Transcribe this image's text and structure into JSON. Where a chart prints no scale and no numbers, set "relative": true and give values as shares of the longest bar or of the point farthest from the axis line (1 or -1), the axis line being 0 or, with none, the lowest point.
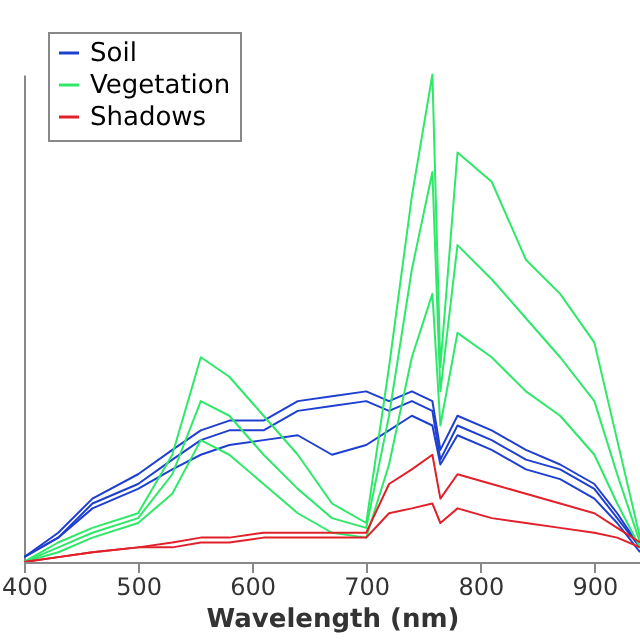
{
  "chart_data": {
    "type": "line",
    "relative": true,
    "xlabel": "Wavelength (nm)",
    "xlim": [
      400,
      940
    ],
    "xticks": [
      400,
      500,
      600,
      700,
      800,
      900
    ],
    "grid": false,
    "legend": "top left",
    "x": [
      400,
      430,
      460,
      500,
      530,
      555,
      580,
      610,
      640,
      670,
      700,
      720,
      740,
      758,
      765,
      780,
      810,
      840,
      870,
      900,
      920,
      940
    ],
    "series": [
      {
        "name": "Soil",
        "color": "#1f3fd0",
        "values": [
          0.01,
          0.06,
          0.13,
          0.18,
          0.23,
          0.27,
          0.29,
          0.29,
          0.33,
          0.34,
          0.35,
          0.33,
          0.35,
          0.33,
          0.23,
          0.3,
          0.27,
          0.23,
          0.2,
          0.16,
          0.1,
          0.03
        ]
      },
      {
        "color": "#1f3fd0",
        "values": [
          0.01,
          0.05,
          0.12,
          0.16,
          0.21,
          0.25,
          0.27,
          0.27,
          0.31,
          0.32,
          0.33,
          0.31,
          0.33,
          0.31,
          0.21,
          0.28,
          0.25,
          0.21,
          0.19,
          0.15,
          0.09,
          0.03
        ]
      },
      {
        "color": "#1f3fd0",
        "values": [
          0.01,
          0.05,
          0.11,
          0.15,
          0.19,
          0.22,
          0.24,
          0.25,
          0.26,
          0.22,
          0.24,
          0.27,
          0.3,
          0.28,
          0.2,
          0.26,
          0.23,
          0.19,
          0.17,
          0.13,
          0.08,
          0.02
        ]
      },
      {
        "name": "Vegetation",
        "color": "#2ee86a",
        "values": [
          0.0,
          0.04,
          0.07,
          0.1,
          0.22,
          0.42,
          0.38,
          0.3,
          0.22,
          0.12,
          0.08,
          0.4,
          0.75,
          1.0,
          0.4,
          0.84,
          0.78,
          0.62,
          0.55,
          0.45,
          0.25,
          0.05
        ]
      },
      {
        "color": "#2ee86a",
        "values": [
          0.0,
          0.03,
          0.06,
          0.09,
          0.18,
          0.33,
          0.3,
          0.22,
          0.15,
          0.09,
          0.07,
          0.3,
          0.6,
          0.8,
          0.35,
          0.65,
          0.58,
          0.5,
          0.42,
          0.33,
          0.18,
          0.04
        ]
      },
      {
        "color": "#2ee86a",
        "values": [
          0.0,
          0.02,
          0.05,
          0.08,
          0.14,
          0.25,
          0.22,
          0.16,
          0.1,
          0.06,
          0.05,
          0.2,
          0.42,
          0.55,
          0.28,
          0.47,
          0.42,
          0.35,
          0.3,
          0.22,
          0.12,
          0.03
        ]
      },
      {
        "name": "Shadows",
        "color": "#e0202a",
        "values": [
          0.0,
          0.01,
          0.02,
          0.03,
          0.04,
          0.05,
          0.05,
          0.06,
          0.06,
          0.06,
          0.06,
          0.16,
          0.19,
          0.22,
          0.13,
          0.18,
          0.16,
          0.14,
          0.12,
          0.1,
          0.07,
          0.04
        ]
      },
      {
        "color": "#e0202a",
        "values": [
          0.0,
          0.01,
          0.02,
          0.03,
          0.03,
          0.04,
          0.04,
          0.05,
          0.05,
          0.05,
          0.05,
          0.1,
          0.11,
          0.12,
          0.08,
          0.11,
          0.09,
          0.08,
          0.07,
          0.06,
          0.05,
          0.03
        ]
      }
    ]
  }
}
